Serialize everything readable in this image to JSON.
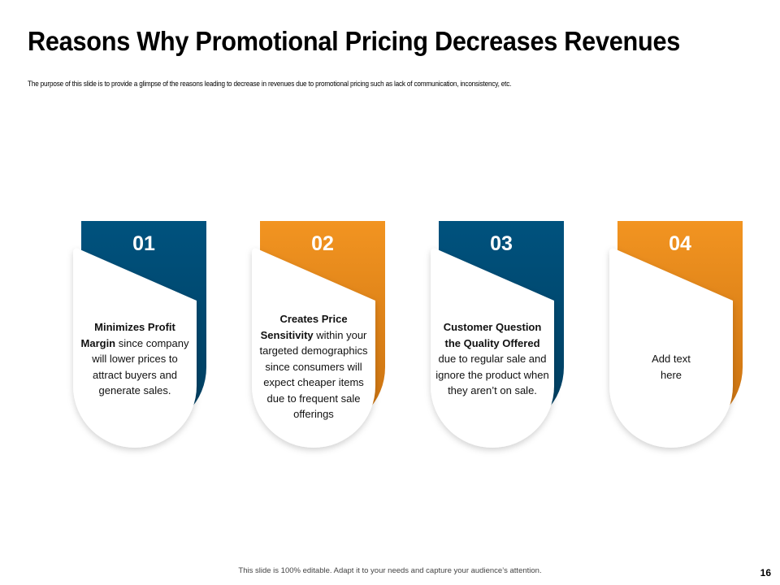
{
  "slide": {
    "title": "Reasons Why Promotional Pricing Decreases Revenues",
    "subtitle": "The purpose of this slide is to provide a glimpse of the reasons leading to decrease in revenues due to promotional pricing such as lack of communication, inconsistency, etc.",
    "footer": "This slide is 100% editable.  Adapt it to your needs and capture your audience’s attention.",
    "page_number": "16"
  },
  "colors": {
    "blue": "#00527E",
    "orange": "#F29421",
    "blue_dark": "#003D5E",
    "orange_dark": "#C8700F"
  },
  "cards": [
    {
      "number": "01",
      "color": "blue",
      "bold": "Minimizes Profit Margin",
      "text": " since company will lower prices to attract buyers and generate sales."
    },
    {
      "number": "02",
      "color": "orange",
      "bold": "Creates Price Sensitivity",
      "text": " within your targeted demographics since consumers will expect cheaper items due to frequent sale offerings"
    },
    {
      "number": "03",
      "color": "blue",
      "bold": "Customer Question the Quality Offered",
      "text": " due to regular sale and ignore the product when they aren’t on sale."
    },
    {
      "number": "04",
      "color": "orange",
      "bold": "",
      "text": "Add text here"
    }
  ]
}
